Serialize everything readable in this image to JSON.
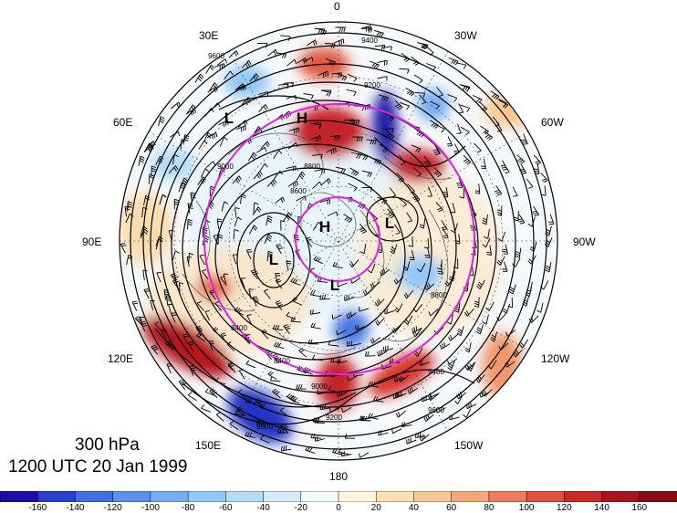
{
  "level_label": "300 hPa",
  "time_label": "1200 UTC 20 Jan 1999",
  "meridian_labels": {
    "m0": "0",
    "m30w": "30W",
    "m60w": "60W",
    "m90w": "90W",
    "m120w": "120W",
    "m150w": "150W",
    "m180": "180",
    "m150e": "150E",
    "m120e": "120E",
    "m90e": "90E",
    "m60e": "60E",
    "m30e": "30E"
  },
  "pressure_centers": [
    {
      "id": "h1",
      "text": "H"
    },
    {
      "id": "h2",
      "text": "H"
    },
    {
      "id": "l1",
      "text": "L"
    },
    {
      "id": "l2",
      "text": "L"
    },
    {
      "id": "l3",
      "text": "L"
    },
    {
      "id": "l4",
      "text": "L"
    }
  ],
  "contour_labels": [
    "9400",
    "9600",
    "9200",
    "9000",
    "8800",
    "8600",
    "8400",
    "8400",
    "8800",
    "9000",
    "9200",
    "9400",
    "9600",
    "9600"
  ],
  "colorbar": {
    "ticks": [
      "-160",
      "-140",
      "-120",
      "-100",
      "-80",
      "-60",
      "-40",
      "-20",
      "0",
      "20",
      "40",
      "60",
      "80",
      "100",
      "120",
      "140",
      "160"
    ],
    "colors": [
      "#1a10a8",
      "#2c3fd0",
      "#3f6fe6",
      "#5a90ee",
      "#74aef2",
      "#92c8f6",
      "#b2dcf8",
      "#d4ecfa",
      "#f2fafc",
      "#fdf5dc",
      "#fbe0b4",
      "#f8c894",
      "#f4a778",
      "#ec7c5c",
      "#e0503c",
      "#cc2a24",
      "#ac121a",
      "#860c14"
    ]
  },
  "colors": {
    "magenta_circles": "#e020e0",
    "contours": "#000000"
  }
}
